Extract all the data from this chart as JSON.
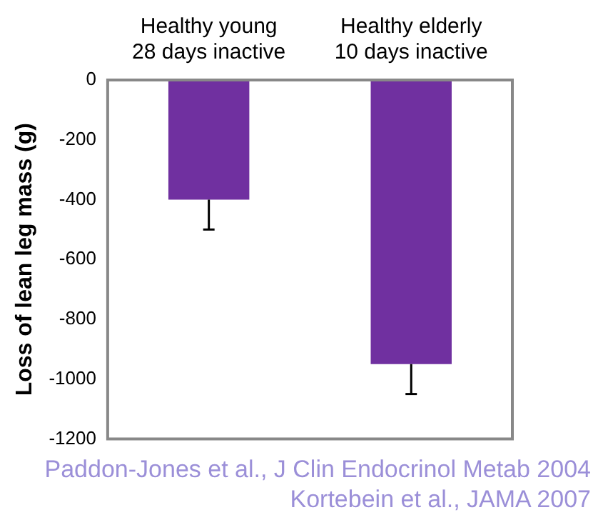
{
  "chart_data": {
    "type": "bar",
    "ylabel": "Loss of lean leg mass (g)",
    "categories": [
      "Healthy young\n28 days inactive",
      "Healthy elderly\n10 days inactive"
    ],
    "values": [
      -400,
      -950
    ],
    "errors": [
      [
        -500,
        -400
      ],
      [
        -1050,
        -950
      ]
    ],
    "color": "#7030a0",
    "ylim": [
      -1200,
      0
    ],
    "yticks": [
      0,
      -200,
      -400,
      -600,
      -800,
      -1000,
      -1200
    ],
    "grid": false,
    "legend": false,
    "annotations": [
      "Paddon-Jones et al.,  J Clin Endocrinol Metab 2004",
      "Kortebein et al., JAMA 2007"
    ]
  }
}
